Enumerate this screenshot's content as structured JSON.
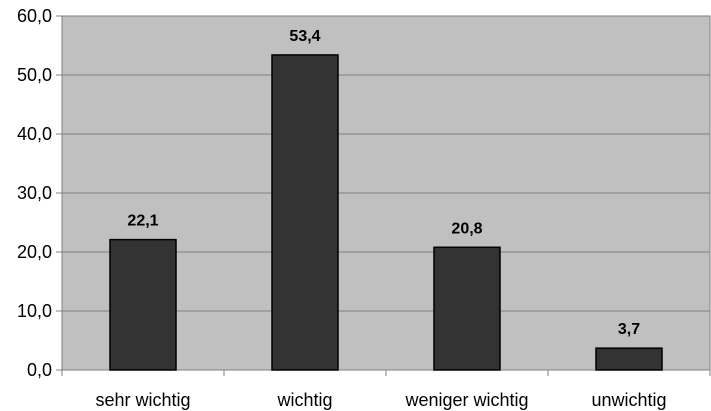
{
  "chart_data": {
    "type": "bar",
    "categories": [
      "sehr wichtig",
      "wichtig",
      "weniger wichtig",
      "unwichtig"
    ],
    "values": [
      22.1,
      53.4,
      20.8,
      3.7
    ],
    "value_labels": [
      "22,1",
      "53,4",
      "20,8",
      "3,7"
    ],
    "ylim": [
      0,
      60
    ],
    "yticks": [
      0,
      10,
      20,
      30,
      40,
      50,
      60
    ],
    "ytick_labels": [
      "0,0",
      "10,0",
      "20,0",
      "30,0",
      "40,0",
      "50,0",
      "60,0"
    ],
    "grid": true,
    "title": "",
    "xlabel": "",
    "ylabel": "",
    "colors": {
      "plot_background": "#c0c0c0",
      "bar_fill": "#333333",
      "bar_stroke": "#000000",
      "grid": "#808080",
      "axis": "#808080"
    }
  }
}
